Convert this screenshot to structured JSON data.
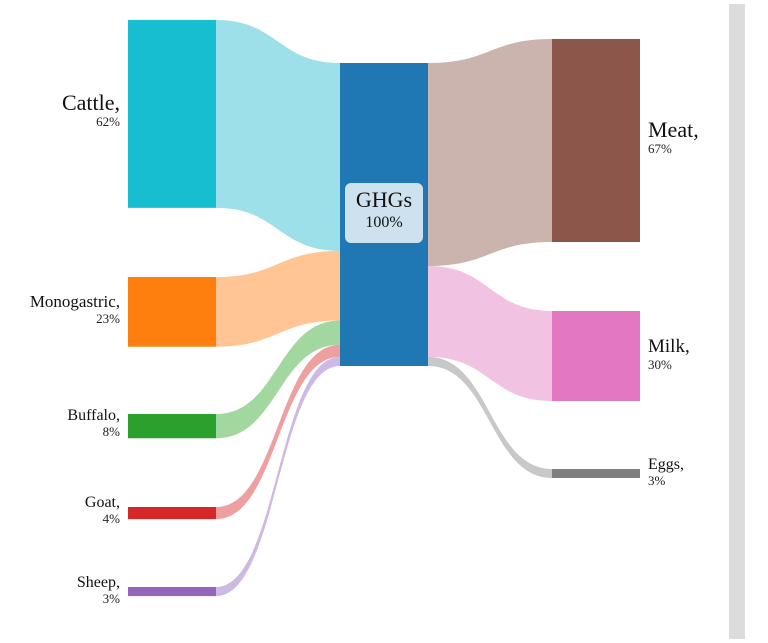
{
  "sources": [
    {
      "id": "cattle",
      "label": "Cattle,",
      "percent": "62%",
      "value": 62,
      "color": "#17becf",
      "link_color": "#9ee0ea"
    },
    {
      "id": "monogastric",
      "label": "Monogastric,",
      "percent": "23%",
      "value": 23,
      "color": "#ff7f0e",
      "link_color": "#ffc594"
    },
    {
      "id": "buffalo",
      "label": "Buffalo,",
      "percent": "8%",
      "value": 8,
      "color": "#2ca02c",
      "link_color": "#a2d7a0"
    },
    {
      "id": "goat",
      "label": "Goat,",
      "percent": "4%",
      "value": 4,
      "color": "#d62728",
      "link_color": "#eea0a0"
    },
    {
      "id": "sheep",
      "label": "Sheep,",
      "percent": "3%",
      "value": 3,
      "color": "#9467bd",
      "link_color": "#cdb9e3"
    }
  ],
  "center": {
    "label": "GHGs",
    "percent": "100%",
    "value": 100,
    "color": "#1f77b4"
  },
  "targets": [
    {
      "id": "meat",
      "label": "Meat,",
      "percent": "67%",
      "value": 67,
      "color": "#8c564b",
      "link_color": "#cbb4ad"
    },
    {
      "id": "milk",
      "label": "Milk,",
      "percent": "30%",
      "value": 30,
      "color": "#e377c2",
      "link_color": "#f2c2e2"
    },
    {
      "id": "eggs",
      "label": "Eggs,",
      "percent": "3%",
      "value": 3,
      "color": "#7f7f7f",
      "link_color": "#c8c8c8"
    }
  ]
}
